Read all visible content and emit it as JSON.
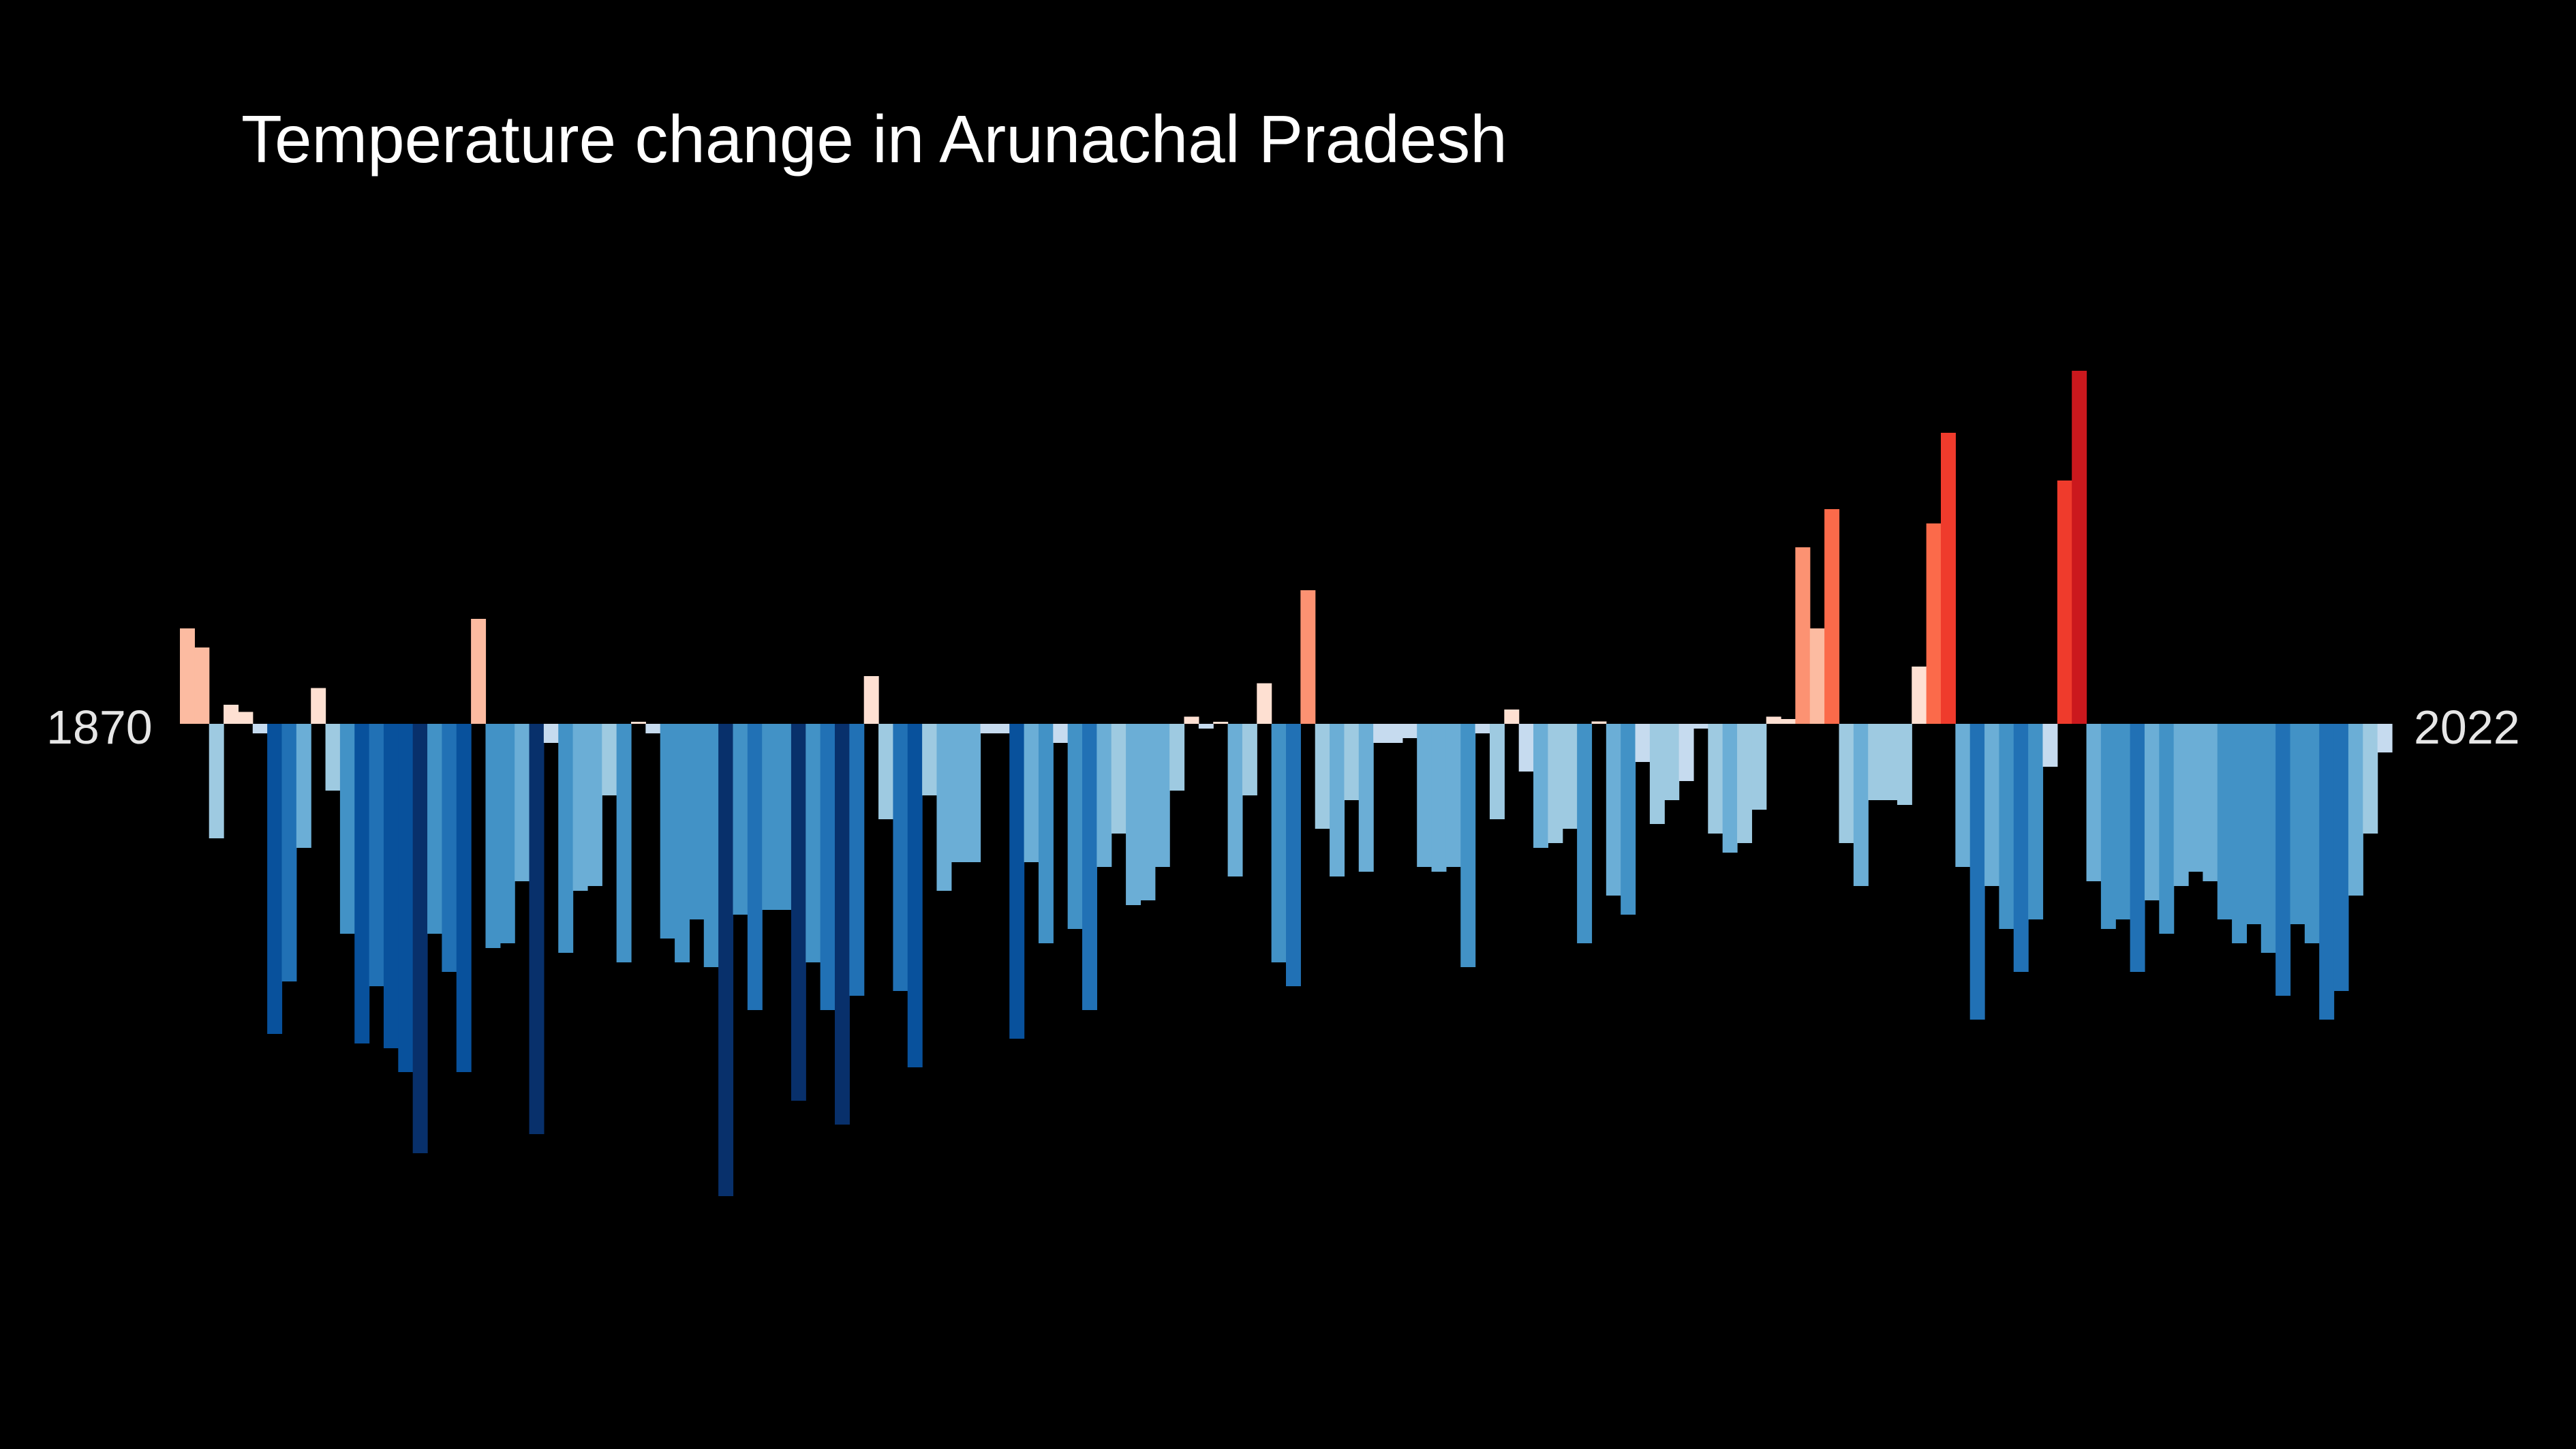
{
  "chart_data": {
    "type": "bar",
    "title": "Temperature change in Arunachal Pradesh",
    "start_label": "1870",
    "end_label": "2022",
    "x_start": 1870,
    "x_end": 2022,
    "baseline": 0,
    "ylim": [
      -1.0,
      1.2
    ],
    "grid": false,
    "legend": "none",
    "values": [
      0.2,
      0.16,
      -0.24,
      0.04,
      0.025,
      -0.02,
      -0.65,
      -0.54,
      -0.26,
      0.075,
      -0.14,
      -0.44,
      -0.67,
      -0.55,
      -0.68,
      -0.73,
      -0.9,
      -0.44,
      -0.52,
      -0.73,
      0.22,
      -0.47,
      -0.46,
      -0.33,
      -0.86,
      -0.04,
      -0.48,
      -0.35,
      -0.34,
      -0.15,
      -0.5,
      0.0,
      -0.02,
      -0.45,
      -0.5,
      -0.41,
      -0.51,
      -0.99,
      -0.4,
      -0.6,
      -0.39,
      -0.39,
      -0.79,
      -0.5,
      -0.6,
      -0.84,
      -0.57,
      0.1,
      -0.2,
      -0.56,
      -0.72,
      -0.15,
      -0.35,
      -0.29,
      -0.29,
      -0.02,
      -0.02,
      -0.66,
      -0.29,
      -0.46,
      -0.04,
      -0.43,
      -0.6,
      -0.3,
      -0.23,
      -0.38,
      -0.37,
      -0.3,
      -0.14,
      0.015,
      -0.01,
      0.0,
      -0.32,
      -0.15,
      0.085,
      -0.5,
      -0.55,
      0.28,
      -0.22,
      -0.32,
      -0.16,
      -0.31,
      -0.04,
      -0.04,
      -0.03,
      -0.3,
      -0.31,
      -0.3,
      -0.51,
      -0.02,
      -0.2,
      0.03,
      -0.1,
      -0.26,
      -0.25,
      -0.22,
      -0.46,
      0.005,
      -0.36,
      -0.4,
      -0.08,
      -0.21,
      -0.16,
      -0.12,
      -0.01,
      -0.23,
      -0.27,
      -0.25,
      -0.18,
      0.015,
      0.01,
      0.37,
      0.2,
      0.45,
      -0.25,
      -0.34,
      -0.16,
      -0.16,
      -0.17,
      0.12,
      0.42,
      0.61,
      -0.3,
      -0.62,
      -0.34,
      -0.43,
      -0.52,
      -0.41,
      -0.09,
      0.51,
      0.74,
      -0.33,
      -0.43,
      -0.41,
      -0.52,
      -0.37,
      -0.44,
      -0.34,
      -0.31,
      -0.33,
      -0.41,
      -0.46,
      -0.42,
      -0.48,
      -0.57,
      -0.42,
      -0.46,
      -0.62,
      -0.56,
      -0.36,
      -0.23,
      -0.06
    ]
  }
}
